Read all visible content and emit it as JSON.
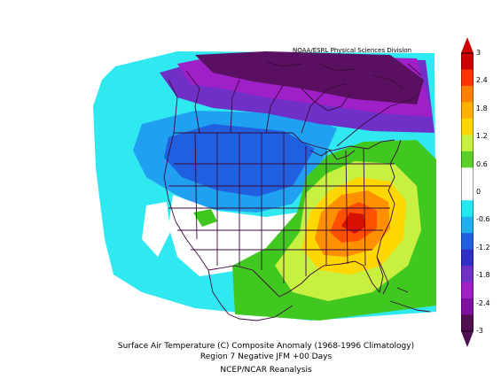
{
  "credit": "NOAA/ESRL Physical Sciences Division",
  "caption": {
    "line1": "Surface Air Temperature (C) Composite Anomaly (1968-1996 Climatology)",
    "line2": "Region 7 Negative JFM +00 Days",
    "line3": "NCEP/NCAR Reanalysis"
  },
  "colorbar": {
    "labels": [
      "3",
      "2.4",
      "1.8",
      "1.2",
      "0.6",
      "0",
      "-0.6",
      "-1.2",
      "-1.8",
      "-2.4",
      "-3"
    ],
    "colors": [
      "#cc0000",
      "#ff3300",
      "#ff8000",
      "#ffb000",
      "#ffd700",
      "#c8f040",
      "#5ad028",
      "#ffffff",
      "#ffffff",
      "#22e8f0",
      "#20b0f0",
      "#2060e0",
      "#3030c8",
      "#7030c8",
      "#a020c8",
      "#8010a0",
      "#501050"
    ]
  },
  "legend_colors": {
    "deep_purple": "#5a1060",
    "purple": "#a020c8",
    "violet": "#7030c8",
    "blue": "#2060e0",
    "mid_blue": "#20a0f0",
    "cyan": "#30e8f0",
    "green": "#40c820",
    "yellow_green": "#c8f040",
    "yellow": "#ffd700",
    "orange": "#ff9000",
    "red_orange": "#ff5000",
    "red": "#d81000"
  }
}
